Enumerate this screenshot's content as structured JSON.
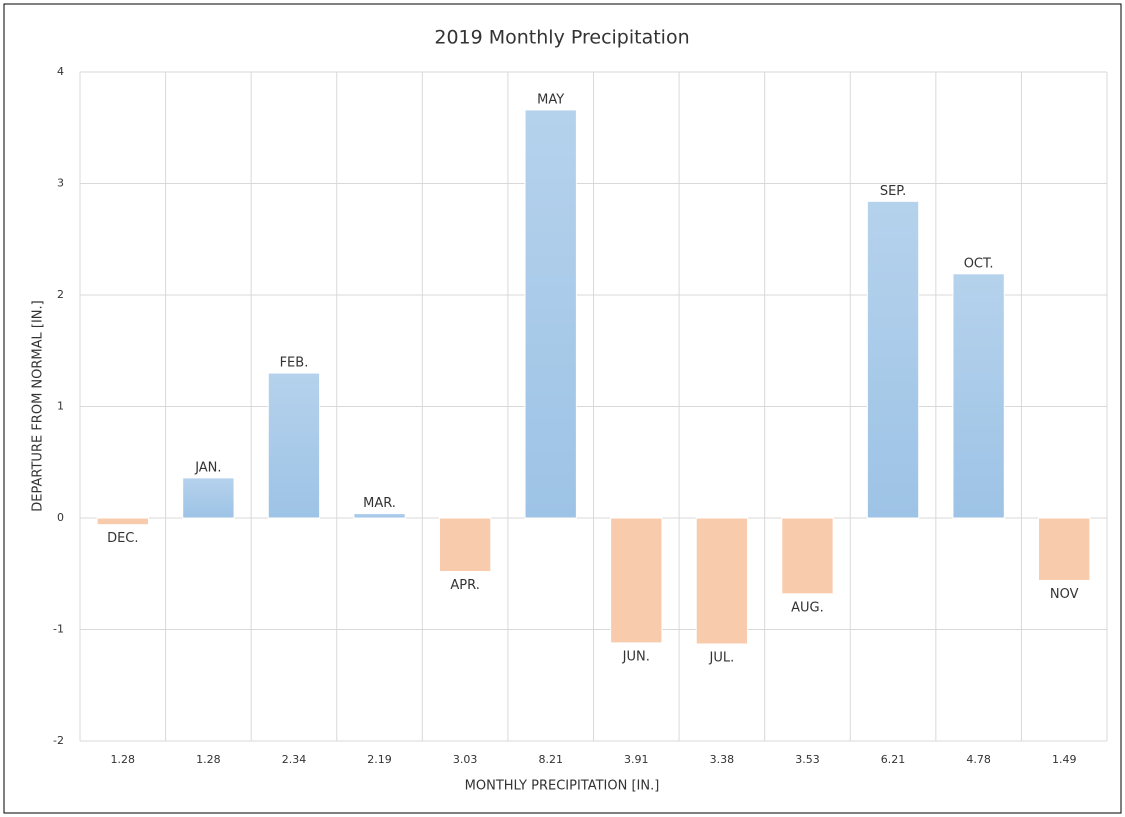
{
  "chart_data": {
    "type": "bar",
    "title": "2019 Monthly Precipitation",
    "x_label": "MONTHLY PRECIPITATION [IN.]",
    "y_label": "DEPARTURE FROM NORMAL [IN.]",
    "categories": [
      "1.28",
      "1.28",
      "2.34",
      "2.19",
      "3.03",
      "8.21",
      "3.91",
      "3.38",
      "3.53",
      "6.21",
      "4.78",
      "1.49"
    ],
    "months": [
      "DEC.",
      "JAN.",
      "FEB.",
      "MAR.",
      "APR.",
      "MAY",
      "JUN.",
      "JUL.",
      "AUG.",
      "SEP.",
      "OCT.",
      "NOV"
    ],
    "values": [
      -0.06,
      0.36,
      1.3,
      0.04,
      -0.48,
      3.66,
      -1.12,
      -1.13,
      -0.68,
      2.84,
      2.19,
      -0.56
    ],
    "positive_color": "#9dc3e6",
    "negative_color": "#f8cbad",
    "ylim": [
      -2,
      4
    ],
    "yticks": [
      -2,
      -1,
      0,
      1,
      2,
      3,
      4
    ],
    "grid": true
  }
}
